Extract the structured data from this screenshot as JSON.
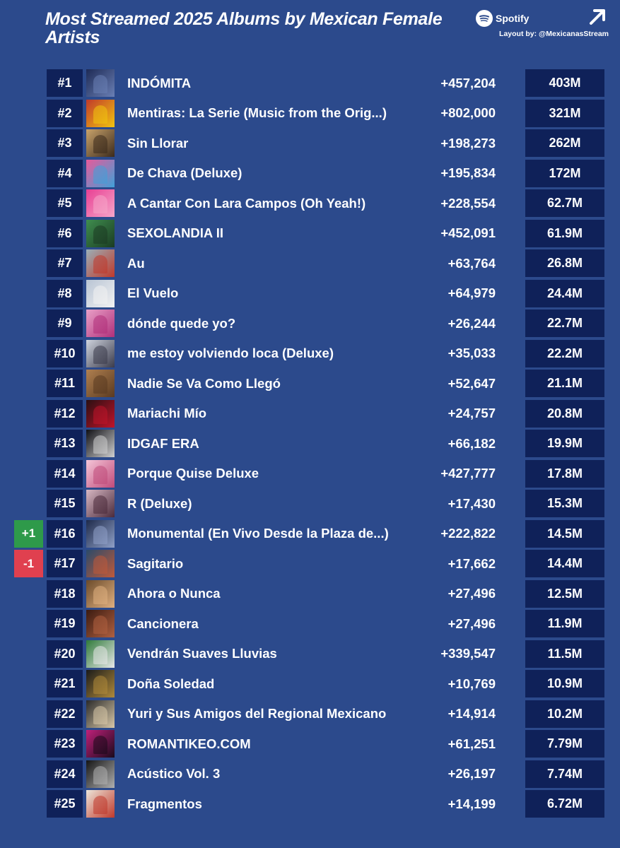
{
  "header": {
    "title": "Most Streamed 2025 Albums by Mexican Female Artists",
    "brand": "Spotify",
    "layout_credit": "Layout by: @MexicanasStream"
  },
  "colors": {
    "background": "#2c4a8c",
    "cell": "#0f2159",
    "up": "#2e9a4a",
    "down": "#e0404f"
  },
  "rows": [
    {
      "rank": "#1",
      "album": "INDÓMITA",
      "daily": "+457,204",
      "total": "403M",
      "change": "",
      "cover": [
        "#1d2a55",
        "#6a7fb5"
      ]
    },
    {
      "rank": "#2",
      "album": "Mentiras: La Serie (Music from the Orig...)",
      "daily": "+802,000",
      "total": "321M",
      "change": "",
      "cover": [
        "#c0392b",
        "#f1c40f"
      ]
    },
    {
      "rank": "#3",
      "album": "Sin Llorar",
      "daily": "+198,273",
      "total": "262M",
      "change": "",
      "cover": [
        "#c9a36b",
        "#3b2a1c"
      ]
    },
    {
      "rank": "#4",
      "album": "De Chava (Deluxe)",
      "daily": "+195,834",
      "total": "172M",
      "change": "",
      "cover": [
        "#e85a9a",
        "#3fa0d8"
      ]
    },
    {
      "rank": "#5",
      "album": "A Cantar Con Lara Campos (Oh Yeah!)",
      "daily": "+228,554",
      "total": "62.7M",
      "change": "",
      "cover": [
        "#e83f93",
        "#f6a6c9"
      ]
    },
    {
      "rank": "#6",
      "album": "SEXOLANDIA II",
      "daily": "+452,091",
      "total": "61.9M",
      "change": "",
      "cover": [
        "#3f8e4f",
        "#1b3b22"
      ]
    },
    {
      "rank": "#7",
      "album": "Au",
      "daily": "+63,764",
      "total": "26.8M",
      "change": "",
      "cover": [
        "#9ab0b8",
        "#c0392b"
      ]
    },
    {
      "rank": "#8",
      "album": "El Vuelo",
      "daily": "+64,979",
      "total": "24.4M",
      "change": "",
      "cover": [
        "#b8c4d4",
        "#f2f2f2"
      ]
    },
    {
      "rank": "#9",
      "album": "dónde quede yo?",
      "daily": "+26,244",
      "total": "22.7M",
      "change": "",
      "cover": [
        "#e9a0c8",
        "#b0307a"
      ]
    },
    {
      "rank": "#10",
      "album": "me estoy volviendo loca (Deluxe)",
      "daily": "+35,033",
      "total": "22.2M",
      "change": "",
      "cover": [
        "#cfd4de",
        "#3a3a4a"
      ]
    },
    {
      "rank": "#11",
      "album": "Nadie Se Va Como Llegó",
      "daily": "+52,647",
      "total": "21.1M",
      "change": "",
      "cover": [
        "#b08050",
        "#5a3a20"
      ]
    },
    {
      "rank": "#12",
      "album": "Mariachi Mío",
      "daily": "+24,757",
      "total": "20.8M",
      "change": "",
      "cover": [
        "#2a0f12",
        "#c0142a"
      ]
    },
    {
      "rank": "#13",
      "album": "IDGAF ERA",
      "daily": "+66,182",
      "total": "19.9M",
      "change": "",
      "cover": [
        "#0f0f14",
        "#d0d0d0"
      ]
    },
    {
      "rank": "#14",
      "album": "Porque Quise Deluxe",
      "daily": "+427,777",
      "total": "17.8M",
      "change": "",
      "cover": [
        "#f4c6d8",
        "#c04a7a"
      ]
    },
    {
      "rank": "#15",
      "album": "R (Deluxe)",
      "daily": "+17,430",
      "total": "15.3M",
      "change": "",
      "cover": [
        "#d8b8c4",
        "#4a2a3a"
      ]
    },
    {
      "rank": "#16",
      "album": "Monumental (En Vivo Desde la Plaza de...)",
      "daily": "+222,822",
      "total": "14.5M",
      "change": "+1",
      "cover": [
        "#1e2a4a",
        "#8fa0c8"
      ]
    },
    {
      "rank": "#17",
      "album": "Sagitario",
      "daily": "+17,662",
      "total": "14.4M",
      "change": "-1",
      "cover": [
        "#2a4a6a",
        "#c05a3a"
      ]
    },
    {
      "rank": "#18",
      "album": "Ahora o Nunca",
      "daily": "+27,496",
      "total": "12.5M",
      "change": "",
      "cover": [
        "#6a4a2a",
        "#e0b080"
      ]
    },
    {
      "rank": "#19",
      "album": "Cancionera",
      "daily": "+27,496",
      "total": "11.9M",
      "change": "",
      "cover": [
        "#3a1a10",
        "#b06040"
      ]
    },
    {
      "rank": "#20",
      "album": "Vendrán Suaves Lluvias",
      "daily": "+339,547",
      "total": "11.5M",
      "change": "",
      "cover": [
        "#2f7a3a",
        "#e8e8e8"
      ]
    },
    {
      "rank": "#21",
      "album": "Doña Soledad",
      "daily": "+10,769",
      "total": "10.9M",
      "change": "",
      "cover": [
        "#1a1a1a",
        "#b08a3a"
      ]
    },
    {
      "rank": "#22",
      "album": "Yuri y Sus Amigos del Regional Mexicano",
      "daily": "+14,914",
      "total": "10.2M",
      "change": "",
      "cover": [
        "#2a2a2a",
        "#d8c8a8"
      ]
    },
    {
      "rank": "#23",
      "album": "ROMANTIKEO.COM",
      "daily": "+61,251",
      "total": "7.79M",
      "change": "",
      "cover": [
        "#c0207a",
        "#1a0a1a"
      ]
    },
    {
      "rank": "#24",
      "album": "Acústico Vol. 3",
      "daily": "+26,197",
      "total": "7.74M",
      "change": "",
      "cover": [
        "#141414",
        "#b0b0b0"
      ]
    },
    {
      "rank": "#25",
      "album": "Fragmentos",
      "daily": "+14,199",
      "total": "6.72M",
      "change": "",
      "cover": [
        "#ece6da",
        "#c0392b"
      ]
    }
  ]
}
